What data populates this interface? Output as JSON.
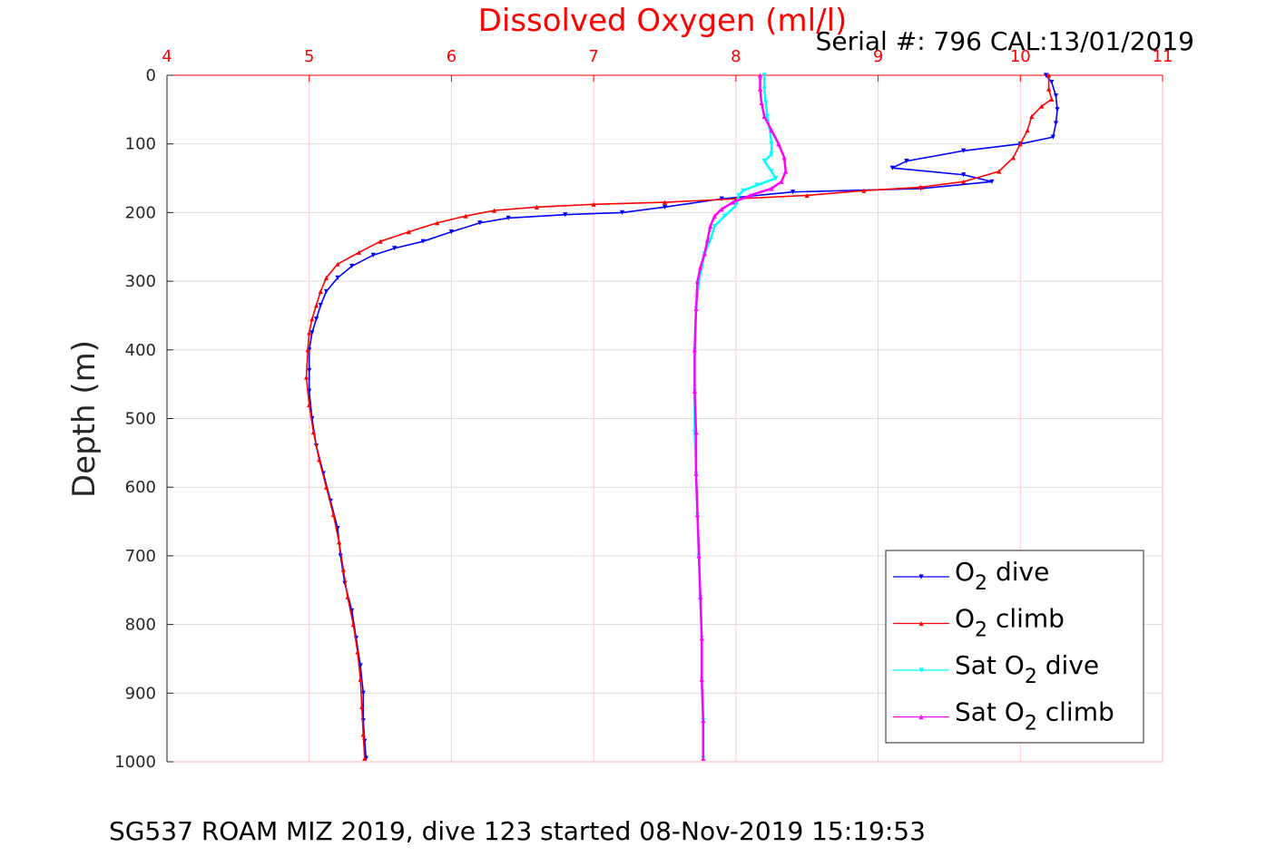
{
  "title": "Dissolved Oxygen (ml/l)",
  "serial": "Serial #: 796  CAL:13/01/2019",
  "footer": "SG537 ROAM MIZ 2019, dive 123 started 08-Nov-2019 15:19:53",
  "chart_data": {
    "type": "line",
    "title": "Dissolved Oxygen (ml/l)",
    "xlabel": "",
    "ylabel": "Depth (m)",
    "xlim": [
      4,
      11
    ],
    "ylim": [
      0,
      1000
    ],
    "y_reversed": true,
    "x_axis_position": "top",
    "grid": true,
    "legend_position": "bottom-right",
    "x_ticks": [
      "4",
      "5",
      "6",
      "7",
      "8",
      "9",
      "10",
      "11"
    ],
    "y_ticks": [
      "0",
      "100",
      "200",
      "300",
      "400",
      "500",
      "600",
      "700",
      "800",
      "900",
      "1000"
    ],
    "series": [
      {
        "name": "O2 dive",
        "legend_label": "O",
        "legend_sub": "2",
        "legend_tail": " dive",
        "color": "#0000ff",
        "marker": "triangle-down",
        "points": [
          [
            10.18,
            0
          ],
          [
            10.22,
            10
          ],
          [
            10.25,
            30
          ],
          [
            10.26,
            50
          ],
          [
            10.25,
            70
          ],
          [
            10.23,
            90
          ],
          [
            10.0,
            100
          ],
          [
            9.6,
            110
          ],
          [
            9.2,
            125
          ],
          [
            9.1,
            135
          ],
          [
            9.6,
            145
          ],
          [
            9.8,
            155
          ],
          [
            9.3,
            165
          ],
          [
            8.4,
            170
          ],
          [
            7.9,
            180
          ],
          [
            7.5,
            192
          ],
          [
            7.2,
            200
          ],
          [
            6.8,
            203
          ],
          [
            6.4,
            208
          ],
          [
            6.2,
            215
          ],
          [
            6.0,
            228
          ],
          [
            5.8,
            242
          ],
          [
            5.6,
            252
          ],
          [
            5.45,
            262
          ],
          [
            5.3,
            278
          ],
          [
            5.2,
            295
          ],
          [
            5.12,
            315
          ],
          [
            5.08,
            335
          ],
          [
            5.05,
            355
          ],
          [
            5.02,
            375
          ],
          [
            5.0,
            400
          ],
          [
            5.0,
            430
          ],
          [
            5.0,
            460
          ],
          [
            5.02,
            500
          ],
          [
            5.05,
            540
          ],
          [
            5.1,
            580
          ],
          [
            5.15,
            620
          ],
          [
            5.2,
            660
          ],
          [
            5.22,
            700
          ],
          [
            5.25,
            740
          ],
          [
            5.3,
            780
          ],
          [
            5.33,
            820
          ],
          [
            5.36,
            860
          ],
          [
            5.38,
            900
          ],
          [
            5.38,
            940
          ],
          [
            5.39,
            970
          ],
          [
            5.4,
            995
          ]
        ]
      },
      {
        "name": "O2 climb",
        "legend_label": "O",
        "legend_sub": "2",
        "legend_tail": " climb",
        "color": "#ff0000",
        "marker": "triangle-up",
        "points": [
          [
            10.2,
            0
          ],
          [
            10.2,
            20
          ],
          [
            10.22,
            35
          ],
          [
            10.15,
            45
          ],
          [
            10.08,
            60
          ],
          [
            10.05,
            80
          ],
          [
            10.0,
            100
          ],
          [
            9.95,
            120
          ],
          [
            9.85,
            140
          ],
          [
            9.6,
            155
          ],
          [
            9.3,
            163
          ],
          [
            8.9,
            168
          ],
          [
            8.5,
            175
          ],
          [
            8.0,
            180
          ],
          [
            7.5,
            185
          ],
          [
            7.0,
            188
          ],
          [
            6.6,
            192
          ],
          [
            6.3,
            197
          ],
          [
            6.1,
            205
          ],
          [
            5.9,
            215
          ],
          [
            5.7,
            228
          ],
          [
            5.5,
            242
          ],
          [
            5.35,
            258
          ],
          [
            5.2,
            275
          ],
          [
            5.12,
            295
          ],
          [
            5.08,
            315
          ],
          [
            5.05,
            335
          ],
          [
            5.02,
            355
          ],
          [
            5.0,
            375
          ],
          [
            4.99,
            400
          ],
          [
            4.98,
            440
          ],
          [
            5.0,
            480
          ],
          [
            5.03,
            520
          ],
          [
            5.07,
            560
          ],
          [
            5.12,
            600
          ],
          [
            5.17,
            640
          ],
          [
            5.21,
            680
          ],
          [
            5.24,
            720
          ],
          [
            5.27,
            760
          ],
          [
            5.31,
            800
          ],
          [
            5.34,
            840
          ],
          [
            5.36,
            880
          ],
          [
            5.37,
            920
          ],
          [
            5.38,
            960
          ],
          [
            5.39,
            995
          ]
        ]
      },
      {
        "name": "Sat O2 dive",
        "legend_label": "Sat O",
        "legend_sub": "2",
        "legend_tail": " dive",
        "color": "#00ffff",
        "marker": "triangle-down",
        "points": [
          [
            8.2,
            0
          ],
          [
            8.2,
            20
          ],
          [
            8.21,
            40
          ],
          [
            8.22,
            60
          ],
          [
            8.24,
            80
          ],
          [
            8.25,
            100
          ],
          [
            8.25,
            115
          ],
          [
            8.2,
            125
          ],
          [
            8.25,
            140
          ],
          [
            8.28,
            150
          ],
          [
            8.15,
            160
          ],
          [
            8.05,
            168
          ],
          [
            8.02,
            175
          ],
          [
            8.0,
            190
          ],
          [
            7.92,
            205
          ],
          [
            7.85,
            220
          ],
          [
            7.82,
            240
          ],
          [
            7.78,
            260
          ],
          [
            7.76,
            280
          ],
          [
            7.74,
            300
          ],
          [
            7.72,
            340
          ],
          [
            7.71,
            400
          ],
          [
            7.71,
            460
          ],
          [
            7.71,
            520
          ],
          [
            7.72,
            580
          ],
          [
            7.73,
            640
          ],
          [
            7.74,
            700
          ],
          [
            7.75,
            760
          ],
          [
            7.76,
            820
          ],
          [
            7.76,
            880
          ],
          [
            7.77,
            940
          ],
          [
            7.77,
            995
          ]
        ]
      },
      {
        "name": "Sat O2 climb",
        "legend_label": "Sat O",
        "legend_sub": "2",
        "legend_tail": " climb",
        "color": "#ff00ff",
        "marker": "triangle-up",
        "points": [
          [
            8.17,
            0
          ],
          [
            8.17,
            20
          ],
          [
            8.18,
            40
          ],
          [
            8.2,
            60
          ],
          [
            8.25,
            80
          ],
          [
            8.3,
            100
          ],
          [
            8.34,
            120
          ],
          [
            8.35,
            140
          ],
          [
            8.32,
            155
          ],
          [
            8.25,
            165
          ],
          [
            8.1,
            175
          ],
          [
            7.98,
            185
          ],
          [
            7.9,
            195
          ],
          [
            7.85,
            205
          ],
          [
            7.82,
            220
          ],
          [
            7.8,
            240
          ],
          [
            7.78,
            260
          ],
          [
            7.75,
            280
          ],
          [
            7.73,
            300
          ],
          [
            7.72,
            340
          ],
          [
            7.71,
            400
          ],
          [
            7.71,
            460
          ],
          [
            7.72,
            520
          ],
          [
            7.72,
            580
          ],
          [
            7.73,
            640
          ],
          [
            7.74,
            700
          ],
          [
            7.75,
            760
          ],
          [
            7.76,
            820
          ],
          [
            7.76,
            880
          ],
          [
            7.77,
            940
          ],
          [
            7.77,
            995
          ]
        ]
      }
    ]
  }
}
